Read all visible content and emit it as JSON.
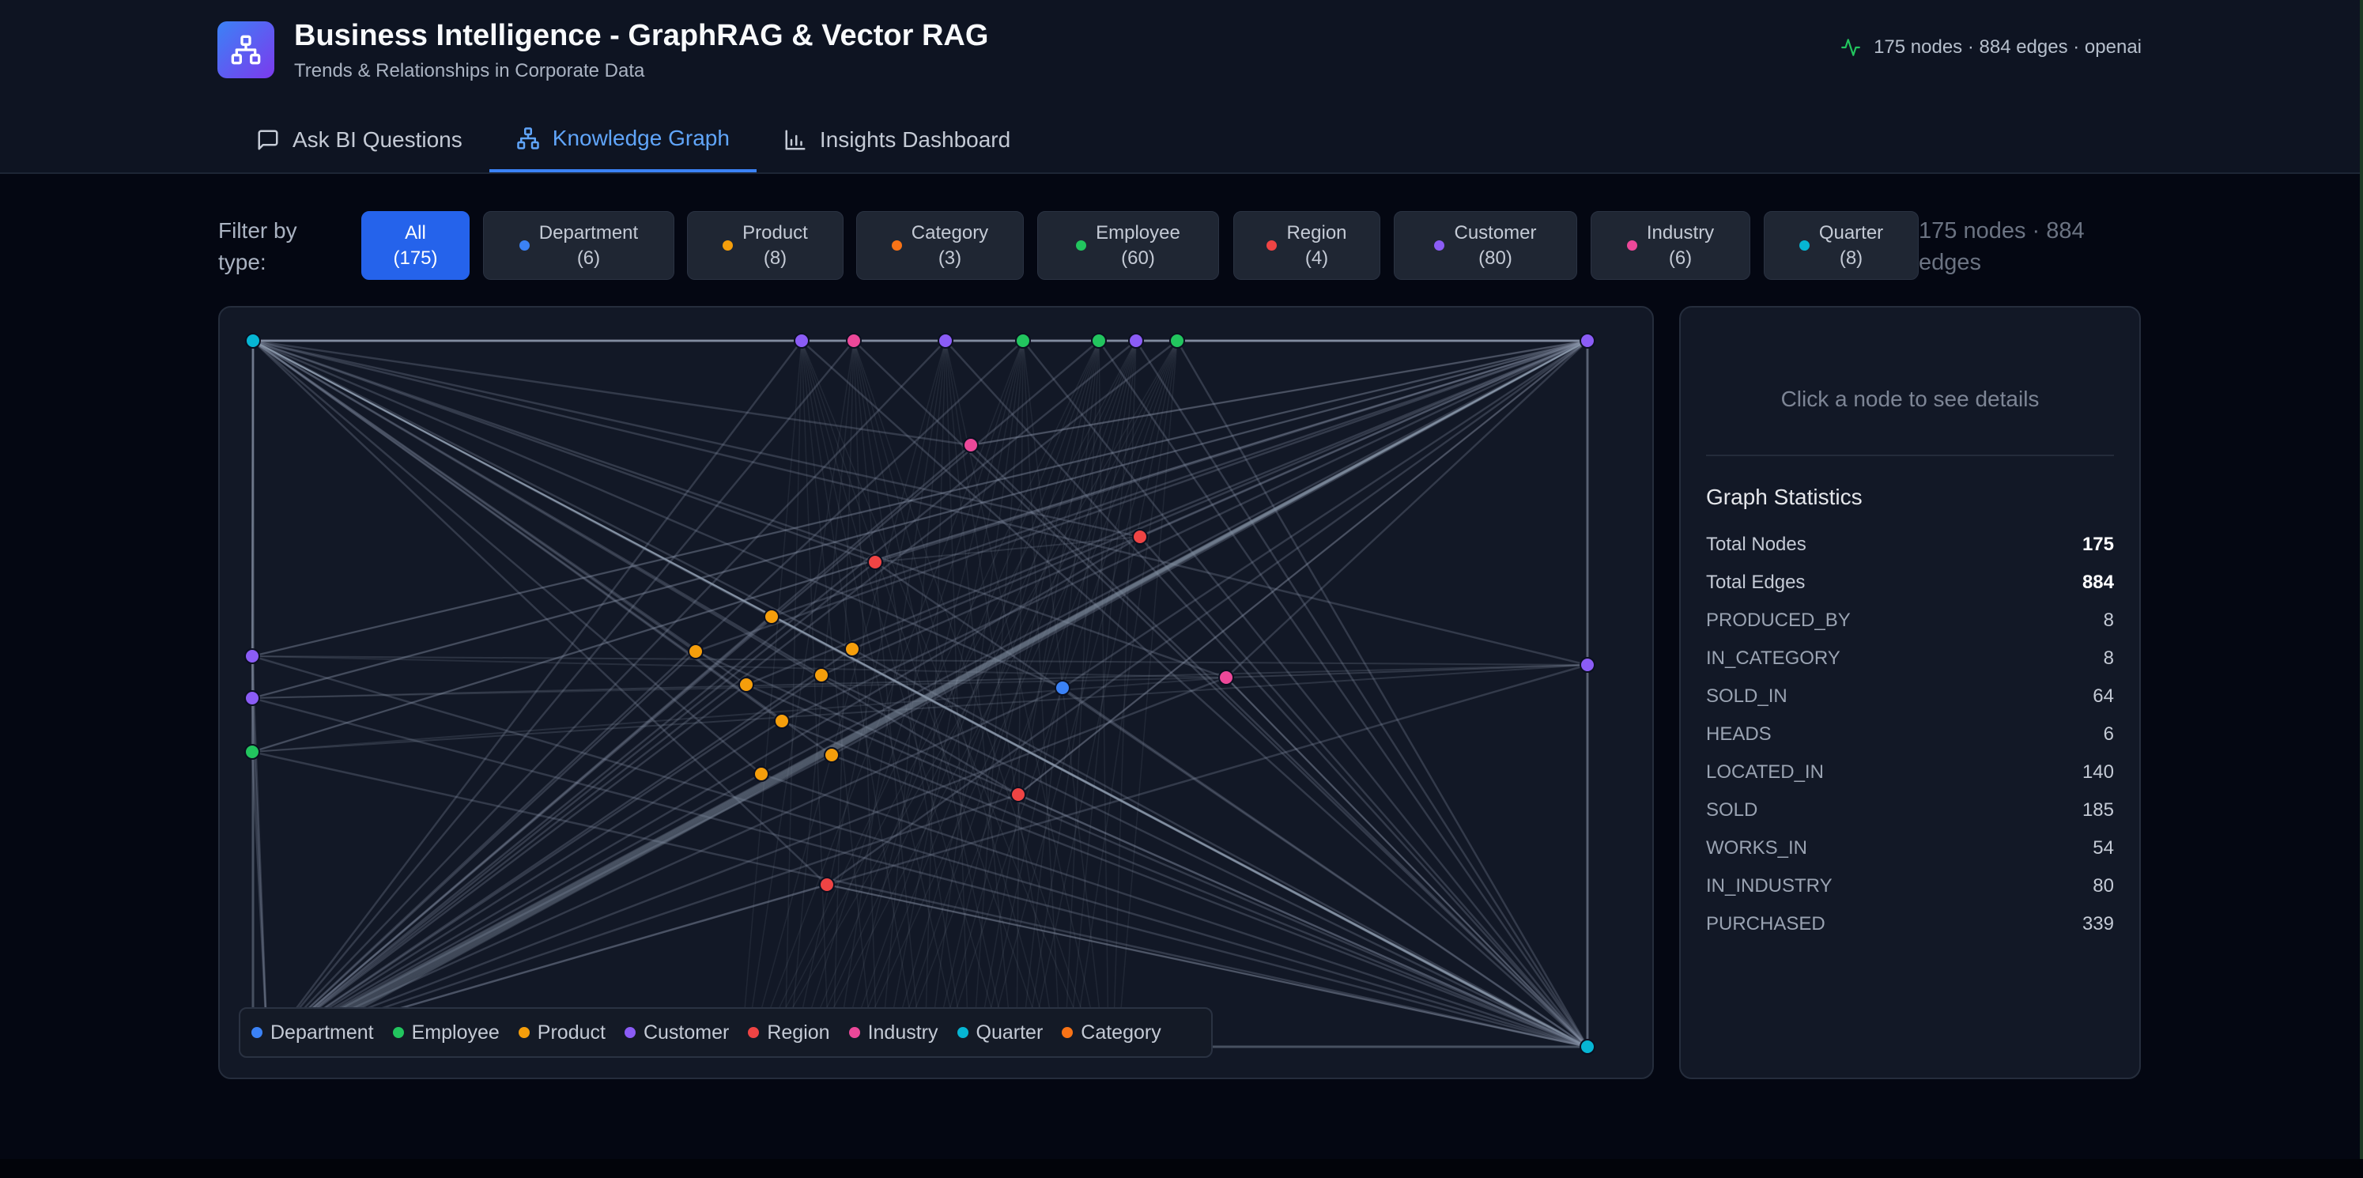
{
  "app": {
    "title": "Business Intelligence - GraphRAG & Vector RAG",
    "subtitle": "Trends & Relationships in Corporate Data",
    "status": "175 nodes · 884 edges · openai"
  },
  "tabs": [
    {
      "label": "Ask BI Questions",
      "icon": "chat-icon",
      "active": false
    },
    {
      "label": "Knowledge Graph",
      "icon": "graph-icon",
      "active": true
    },
    {
      "label": "Insights Dashboard",
      "icon": "bar-chart-icon",
      "active": false
    }
  ],
  "filter": {
    "label": "Filter by type:",
    "chips": [
      {
        "label": "All",
        "count": "(175)",
        "color": null,
        "active": true
      },
      {
        "label": "Department",
        "count": "(6)",
        "color": "#3b82f6",
        "active": false
      },
      {
        "label": "Product",
        "count": "(8)",
        "color": "#f59e0b",
        "active": false
      },
      {
        "label": "Category",
        "count": "(3)",
        "color": "#f97316",
        "active": false
      },
      {
        "label": "Employee",
        "count": "(60)",
        "color": "#22c55e",
        "active": false
      },
      {
        "label": "Region",
        "count": "(4)",
        "color": "#ef4444",
        "active": false
      },
      {
        "label": "Customer",
        "count": "(80)",
        "color": "#8b5cf6",
        "active": false
      },
      {
        "label": "Industry",
        "count": "(6)",
        "color": "#ec4899",
        "active": false
      },
      {
        "label": "Quarter",
        "count": "(8)",
        "color": "#06b6d4",
        "active": false
      }
    ],
    "summary": "175 nodes · 884 edges"
  },
  "graph": {
    "colors": {
      "Department": "#3b82f6",
      "Employee": "#22c55e",
      "Product": "#f59e0b",
      "Customer": "#8b5cf6",
      "Region": "#ef4444",
      "Industry": "#ec4899",
      "Quarter": "#06b6d4",
      "Category": "#f97316"
    },
    "legend": [
      "Department",
      "Employee",
      "Product",
      "Customer",
      "Region",
      "Industry",
      "Quarter",
      "Category"
    ]
  },
  "details": {
    "hint": "Click a node to see details",
    "stats_title": "Graph Statistics",
    "stats": [
      {
        "label": "Total Nodes",
        "value": "175",
        "strong": true
      },
      {
        "label": "Total Edges",
        "value": "884",
        "strong": true
      },
      {
        "label": "PRODUCED_BY",
        "value": "8"
      },
      {
        "label": "IN_CATEGORY",
        "value": "8"
      },
      {
        "label": "SOLD_IN",
        "value": "64"
      },
      {
        "label": "HEADS",
        "value": "6"
      },
      {
        "label": "LOCATED_IN",
        "value": "140"
      },
      {
        "label": "SOLD",
        "value": "185"
      },
      {
        "label": "WORKS_IN",
        "value": "54"
      },
      {
        "label": "IN_INDUSTRY",
        "value": "80"
      },
      {
        "label": "PURCHASED",
        "value": "339"
      }
    ]
  }
}
